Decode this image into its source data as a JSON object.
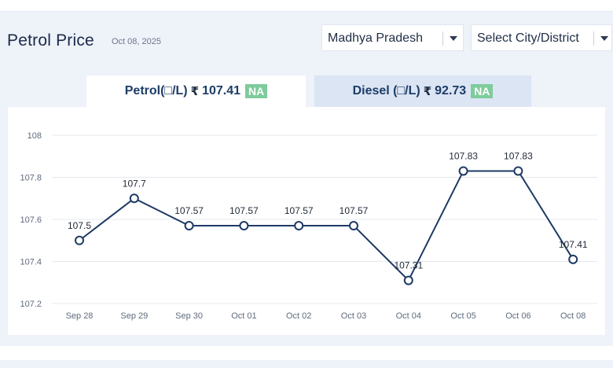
{
  "header": {
    "title": "Petrol Price",
    "date": "Oct 08, 2025"
  },
  "filters": {
    "state": "Madhya Pradesh",
    "city": "Select City/District"
  },
  "tabs": [
    {
      "label": "Petrol(□/L)",
      "price": "107.41",
      "badge": "NA",
      "active": true
    },
    {
      "label": "Diesel (□/L)",
      "price": "92.73",
      "badge": "NA",
      "active": false
    }
  ],
  "colors": {
    "line": "#1e3a66",
    "badge": "#7ecb9c",
    "panel": "#eef2f9"
  },
  "chart_data": {
    "type": "line",
    "categories": [
      "Sep 28",
      "Sep 29",
      "Sep 30",
      "Oct 01",
      "Oct 02",
      "Oct 03",
      "Oct 04",
      "Oct 05",
      "Oct 06",
      "Oct 08"
    ],
    "values": [
      107.5,
      107.7,
      107.57,
      107.57,
      107.57,
      107.57,
      107.31,
      107.83,
      107.83,
      107.41
    ],
    "data_labels": [
      "107.5",
      "107.7",
      "107.57",
      "107.57",
      "107.57",
      "107.57",
      "107.31",
      "107.83",
      "107.83",
      "107.41"
    ],
    "ylim": [
      107.2,
      108
    ],
    "y_ticks": [
      "107.2",
      "107.4",
      "107.6",
      "107.8",
      "108"
    ],
    "grid": true,
    "title": "",
    "xlabel": "",
    "ylabel": ""
  }
}
